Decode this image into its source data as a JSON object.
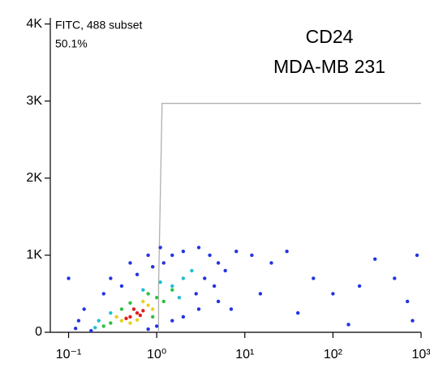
{
  "chart_data": {
    "type": "scatter",
    "annotations": [
      "FITC, 488 subset",
      "50.1%",
      "CD24",
      "MDA-MB 231"
    ],
    "xscale": "log",
    "xlim": [
      0.062,
      1000
    ],
    "xticks": [
      {
        "value": 0.1,
        "label": "10⁻¹"
      },
      {
        "value": 1,
        "label": "10⁰"
      },
      {
        "value": 10,
        "label": "10¹"
      },
      {
        "value": 100,
        "label": "10²"
      },
      {
        "value": 1000,
        "label": "10³"
      }
    ],
    "ylim": [
      0,
      4080
    ],
    "yticks": [
      0,
      {
        "value": 1000,
        "label": "1K"
      },
      {
        "value": 2000,
        "label": "2K"
      },
      {
        "value": 3000,
        "label": "3K"
      },
      {
        "value": 4000,
        "label": "4K"
      }
    ],
    "gate": {
      "color": "#b0b0b0",
      "x": [
        1.05,
        1.05,
        1.15,
        1000
      ],
      "y": [
        0,
        600,
        2970,
        2970
      ]
    },
    "series": [
      {
        "color": "#2434e0",
        "x": [
          0.12,
          0.15,
          0.1,
          0.18,
          0.25,
          0.4,
          0.6,
          0.9,
          1.2,
          1.5,
          2,
          3,
          4,
          5,
          3.5,
          2.8,
          4.5,
          6,
          8,
          3,
          2,
          1.5,
          1,
          0.8,
          0.13,
          0.3,
          0.5,
          0.8,
          1.1,
          5,
          7,
          12,
          20,
          40,
          60,
          100,
          200,
          500,
          700,
          800,
          900,
          30,
          15,
          300,
          150
        ],
        "y": [
          50,
          300,
          700,
          20,
          500,
          600,
          750,
          850,
          900,
          1000,
          1050,
          1100,
          1000,
          900,
          700,
          500,
          600,
          800,
          1050,
          300,
          200,
          150,
          80,
          40,
          150,
          700,
          900,
          1000,
          1100,
          400,
          300,
          1000,
          900,
          250,
          700,
          500,
          600,
          700,
          400,
          150,
          1000,
          1050,
          500,
          950,
          100
        ]
      },
      {
        "color": "#20c0d0",
        "x": [
          0.2,
          1.5,
          2.0,
          0.3,
          1.8,
          0.7,
          1.1,
          0.22,
          2.5
        ],
        "y": [
          60,
          600,
          700,
          250,
          450,
          550,
          650,
          150,
          800
        ]
      },
      {
        "color": "#30c040",
        "x": [
          0.3,
          1.0,
          0.4,
          1.2,
          0.8,
          0.25,
          1.5,
          0.5,
          0.9
        ],
        "y": [
          120,
          450,
          300,
          400,
          500,
          80,
          550,
          380,
          200
        ]
      },
      {
        "color": "#e8d020",
        "x": [
          0.4,
          0.8,
          0.5,
          0.9,
          0.35,
          0.7,
          0.6
        ],
        "y": [
          150,
          350,
          120,
          300,
          200,
          400,
          160
        ]
      },
      {
        "color": "#e02020",
        "x": [
          0.5,
          0.6,
          0.55,
          0.7,
          0.45,
          0.65
        ],
        "y": [
          200,
          250,
          300,
          280,
          180,
          220
        ]
      }
    ]
  }
}
